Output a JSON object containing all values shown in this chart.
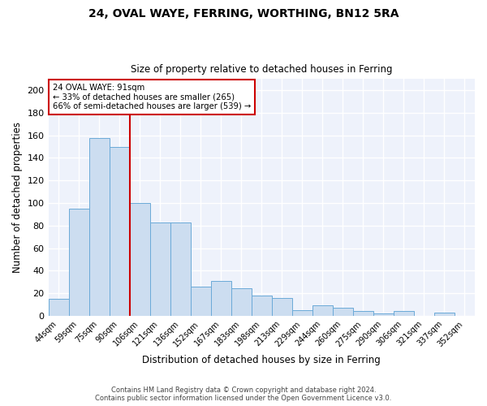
{
  "title1": "24, OVAL WAYE, FERRING, WORTHING, BN12 5RA",
  "title2": "Size of property relative to detached houses in Ferring",
  "xlabel": "Distribution of detached houses by size in Ferring",
  "ylabel": "Number of detached properties",
  "bar_labels": [
    "44sqm",
    "59sqm",
    "75sqm",
    "90sqm",
    "106sqm",
    "121sqm",
    "136sqm",
    "152sqm",
    "167sqm",
    "183sqm",
    "198sqm",
    "213sqm",
    "229sqm",
    "244sqm",
    "260sqm",
    "275sqm",
    "290sqm",
    "306sqm",
    "321sqm",
    "337sqm",
    "352sqm"
  ],
  "bar_values": [
    15,
    95,
    158,
    150,
    100,
    83,
    83,
    26,
    31,
    24,
    18,
    16,
    5,
    9,
    7,
    4,
    2,
    4,
    0,
    3,
    0
  ],
  "bar_color": "#ccddf0",
  "bar_edge_color": "#6baad8",
  "bar_width": 1.0,
  "vline_color": "#cc0000",
  "annotation_title": "24 OVAL WAYE: 91sqm",
  "annotation_line1": "← 33% of detached houses are smaller (265)",
  "annotation_line2": "66% of semi-detached houses are larger (539) →",
  "annotation_box_color": "#cc0000",
  "ylim": [
    0,
    210
  ],
  "yticks": [
    0,
    20,
    40,
    60,
    80,
    100,
    120,
    140,
    160,
    180,
    200
  ],
  "bg_color": "#eef2fb",
  "grid_color": "#ffffff",
  "fig_color": "#ffffff",
  "footnote1": "Contains HM Land Registry data © Crown copyright and database right 2024.",
  "footnote2": "Contains public sector information licensed under the Open Government Licence v3.0."
}
